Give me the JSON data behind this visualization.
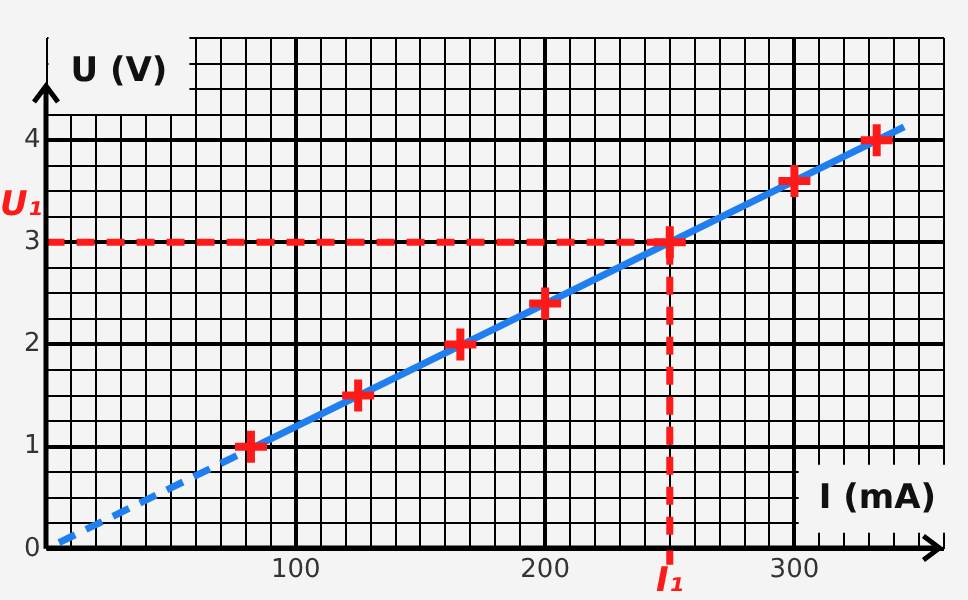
{
  "chart_data": {
    "type": "scatter",
    "xlabel": "I (mA)",
    "ylabel": "U (V)",
    "xlim": [
      0,
      360
    ],
    "ylim": [
      0,
      5
    ],
    "xticks": [
      {
        "value": 0,
        "label": null
      },
      {
        "value": 10,
        "label": null
      },
      {
        "value": 20,
        "label": null
      },
      {
        "value": 30,
        "label": null
      },
      {
        "value": 40,
        "label": null
      },
      {
        "value": 50,
        "label": null
      },
      {
        "value": 60,
        "label": null
      },
      {
        "value": 70,
        "label": null
      },
      {
        "value": 80,
        "label": null
      },
      {
        "value": 90,
        "label": null
      },
      100,
      {
        "value": 110,
        "label": null
      },
      {
        "value": 120,
        "label": null
      },
      {
        "value": 130,
        "label": null
      },
      {
        "value": 140,
        "label": null
      },
      {
        "value": 150,
        "label": null
      },
      {
        "value": 160,
        "label": null
      },
      {
        "value": 170,
        "label": null
      },
      {
        "value": 180,
        "label": null
      },
      {
        "value": 190,
        "label": null
      },
      200,
      {
        "value": 210,
        "label": null
      },
      {
        "value": 220,
        "label": null
      },
      {
        "value": 230,
        "label": null
      },
      {
        "value": 240,
        "label": null
      },
      {
        "value": 250,
        "label": null
      },
      {
        "value": 260,
        "label": null
      },
      {
        "value": 270,
        "label": null
      },
      {
        "value": 280,
        "label": null
      },
      {
        "value": 290,
        "label": null
      },
      300,
      {
        "value": 310,
        "label": null
      },
      {
        "value": 320,
        "label": null
      },
      {
        "value": 330,
        "label": null
      },
      {
        "value": 340,
        "label": null
      },
      {
        "value": 350,
        "label": null
      },
      {
        "value": 360,
        "label": null
      }
    ],
    "yticks": [
      0,
      {
        "value": 0.25,
        "label": null
      },
      {
        "value": 0.5,
        "label": null
      },
      {
        "value": 0.75,
        "label": null
      },
      1,
      {
        "value": 1.25,
        "label": null
      },
      {
        "value": 1.5,
        "label": null
      },
      {
        "value": 1.75,
        "label": null
      },
      2,
      {
        "value": 2.25,
        "label": null
      },
      {
        "value": 2.5,
        "label": null
      },
      {
        "value": 2.75,
        "label": null
      },
      3,
      {
        "value": 3.25,
        "label": null
      },
      {
        "value": 3.5,
        "label": null
      },
      {
        "value": 3.75,
        "label": null
      },
      4,
      {
        "value": 4.25,
        "label": null
      },
      {
        "value": 4.5,
        "label": null
      },
      {
        "value": 4.75,
        "label": null
      },
      {
        "value": 5,
        "label": null
      }
    ],
    "grid": true,
    "series": [
      {
        "type": "line",
        "color": "#1f7ff0",
        "x": [
          82,
          344
        ],
        "values": [
          0.98,
          4.13
        ]
      },
      {
        "type": "line",
        "line_style": "dashed",
        "color": "#1f7ff0",
        "x": [
          5,
          82
        ],
        "values": [
          0.06,
          0.98
        ]
      },
      {
        "type": "scatter",
        "marker": "cross",
        "color": "#ff1a1a",
        "x": [
          82,
          125,
          166,
          200,
          250,
          300,
          333
        ],
        "values": [
          1,
          1.5,
          2,
          2.4,
          3,
          3.6,
          4
        ]
      }
    ],
    "ref_lines": [
      {
        "axis": "y",
        "value": 3,
        "label": "U₁",
        "color": "#ff1a1a",
        "line_style": "dashed"
      },
      {
        "axis": "x",
        "value": 250,
        "label": "I₁",
        "color": "#ff1a1a",
        "line_style": "dashed"
      }
    ]
  }
}
